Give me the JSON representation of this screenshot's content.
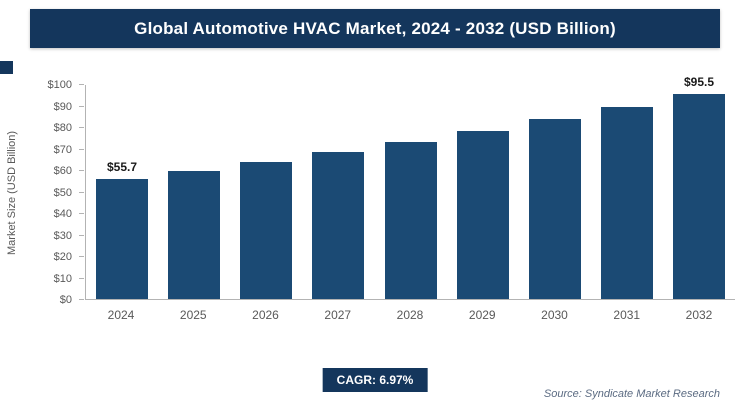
{
  "header": {
    "title": "Global Automotive HVAC Market, 2024 - 2032 (USD Billion)"
  },
  "chart_data": {
    "type": "bar",
    "title": "Global Automotive HVAC Market, 2024 - 2032 (USD Billion)",
    "categories": [
      "2024",
      "2025",
      "2026",
      "2027",
      "2028",
      "2029",
      "2030",
      "2031",
      "2032"
    ],
    "values": [
      55.7,
      59.6,
      63.7,
      68.2,
      72.9,
      78.0,
      83.5,
      89.3,
      95.5
    ],
    "data_labels": [
      "$55.7",
      null,
      null,
      null,
      null,
      null,
      null,
      null,
      "$95.5"
    ],
    "xlabel": "",
    "ylabel": "Market Size (USD Billion)",
    "ylim": [
      0,
      100
    ],
    "y_ticks": [
      "$0",
      "$10",
      "$20",
      "$30",
      "$40",
      "$50",
      "$60",
      "$70",
      "$80",
      "$90",
      "$100"
    ],
    "grid": false,
    "legend": false,
    "bar_color": "#1b4a74"
  },
  "footer": {
    "cagr_label": "CAGR: 6.97%",
    "source": "Source: Syndicate Market Research"
  },
  "colors": {
    "banner": "#14365c",
    "bar": "#1b4a74",
    "badge": "#14365c",
    "axis": "#b3b3b3"
  }
}
